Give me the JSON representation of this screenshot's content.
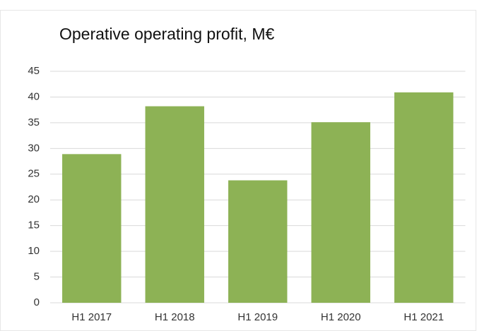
{
  "chart_data": {
    "type": "bar",
    "title": "Operative operating profit, M€",
    "categories": [
      "H1 2017",
      "H1 2018",
      "H1 2019",
      "H1 2020",
      "H1 2021"
    ],
    "values": [
      28.9,
      38.2,
      23.8,
      35.1,
      40.9
    ],
    "color": "#8db255",
    "ylim": [
      0,
      45
    ],
    "yticks": [
      0,
      5,
      10,
      15,
      20,
      25,
      30,
      35,
      40,
      45
    ],
    "grid": true
  }
}
